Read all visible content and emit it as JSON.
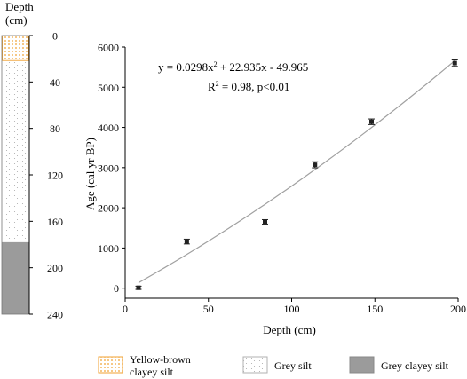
{
  "strat_column": {
    "title_line1": "Depth",
    "title_line2": "(cm)",
    "depth_ticks": [
      "0",
      "40",
      "80",
      "120",
      "160",
      "200",
      "240"
    ],
    "depth_range": [
      0,
      240
    ],
    "layers": [
      {
        "name": "Yellow-brown clayey silt",
        "top": 0,
        "bottom": 22,
        "pattern": "orange-dots",
        "color": "#f0a030"
      },
      {
        "name": "Grey silt",
        "top": 22,
        "bottom": 178,
        "pattern": "grey-dots",
        "color": "#cfcfcf"
      },
      {
        "name": "Grey clayey silt",
        "top": 178,
        "bottom": 240,
        "pattern": "solid-grey",
        "color": "#9b9b9b"
      }
    ]
  },
  "legend": {
    "item1_line1": "Yellow-brown",
    "item1_line2": "clayey silt",
    "item2": "Grey silt",
    "item3": "Grey clayey silt"
  },
  "chart_data": {
    "type": "scatter",
    "xlabel": "Depth (cm)",
    "ylabel": "Age (cal yr BP)",
    "xlim": [
      0,
      200
    ],
    "ylim": [
      -250,
      6000
    ],
    "xticks": [
      "0",
      "50",
      "100",
      "150",
      "200"
    ],
    "yticks": [
      "0",
      "1000",
      "2000",
      "3000",
      "4000",
      "5000",
      "6000"
    ],
    "points": [
      {
        "x": 8,
        "y": 10,
        "err": 40
      },
      {
        "x": 37,
        "y": 1160,
        "err": 60
      },
      {
        "x": 84,
        "y": 1650,
        "err": 55
      },
      {
        "x": 114,
        "y": 3070,
        "err": 75
      },
      {
        "x": 148,
        "y": 4140,
        "err": 70
      },
      {
        "x": 198,
        "y": 5600,
        "err": 80
      }
    ],
    "fit": {
      "a": 0.0298,
      "b": 22.935,
      "c": -49.965,
      "x_range": [
        8,
        198
      ],
      "equation_main": "y = 0.0298x",
      "equation_sup": "2",
      "equation_rest": " + 22.935x - 49.965",
      "r2_label": "R",
      "r2_sup": "2",
      "r2_rest": " = 0.98, p<0.01"
    },
    "grid": false,
    "colors": {
      "points": "#222222",
      "fit": "#a0a0a0",
      "axis": "#000000"
    }
  }
}
